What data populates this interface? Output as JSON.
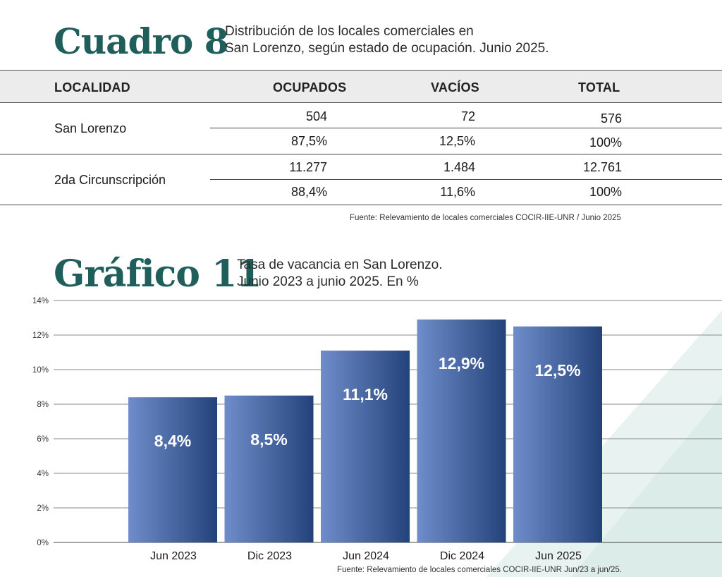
{
  "colors": {
    "title": "#1f5e5a",
    "bar_light": "#6f8dca",
    "bar_dark": "#24427a",
    "header_band": "#ececec",
    "decoration": "#deedeb"
  },
  "table_section": {
    "title": "Cuadro 8",
    "subtitle_line1": "Distribución de los locales comerciales en",
    "subtitle_line2": "San Lorenzo, según estado de ocupación. Junio 2025.",
    "columns": [
      "LOCALIDAD",
      "OCUPADOS",
      "VACÍOS",
      "TOTAL"
    ],
    "rows": [
      {
        "localidad": "San Lorenzo",
        "counts": [
          "504",
          "72",
          "576"
        ],
        "percents": [
          "87,5%",
          "12,5%",
          "100%"
        ]
      },
      {
        "localidad": "2da Circunscripción",
        "counts": [
          "11.277",
          "1.484",
          "12.761"
        ],
        "percents": [
          "88,4%",
          "11,6%",
          "100%"
        ]
      }
    ],
    "source": "Fuente: Relevamiento de locales comerciales COCIR-IIE-UNR / Junio 2025"
  },
  "chart_section": {
    "title": "Gráfico 11",
    "subtitle_line1": "Tasa de vacancia en San Lorenzo.",
    "subtitle_line2": "Junio 2023 a junio 2025. En %",
    "source": "Fuente: Relevamiento de locales comerciales COCIR-IIE-UNR Jun/23 a jun/25."
  },
  "chart_data": {
    "type": "bar",
    "categories": [
      "Jun 2023",
      "Dic 2023",
      "Jun 2024",
      "Dic 2024",
      "Jun 2025"
    ],
    "values": [
      8.4,
      8.5,
      11.1,
      12.9,
      12.5
    ],
    "data_labels": [
      "8,4%",
      "8,5%",
      "11,1%",
      "12,9%",
      "12,5%"
    ],
    "y_ticks": [
      0,
      2,
      4,
      6,
      8,
      10,
      12,
      14
    ],
    "y_tick_labels": [
      "0%",
      "2%",
      "4%",
      "6%",
      "8%",
      "10%",
      "12%",
      "14%"
    ],
    "ylim": [
      0,
      14
    ],
    "grid": true,
    "title": "",
    "xlabel": "",
    "ylabel": ""
  }
}
